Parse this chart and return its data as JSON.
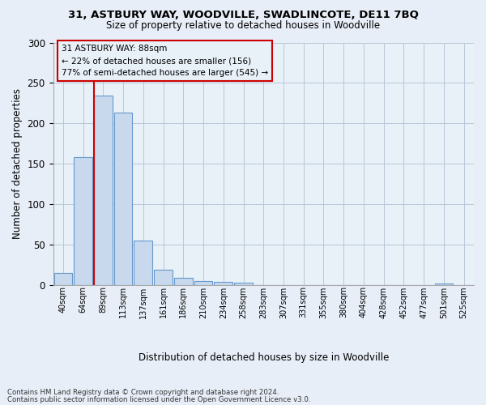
{
  "title1": "31, ASTBURY WAY, WOODVILLE, SWADLINCOTE, DE11 7BQ",
  "title2": "Size of property relative to detached houses in Woodville",
  "xlabel": "Distribution of detached houses by size in Woodville",
  "ylabel": "Number of detached properties",
  "footer1": "Contains HM Land Registry data © Crown copyright and database right 2024.",
  "footer2": "Contains public sector information licensed under the Open Government Licence v3.0.",
  "annotation_line1": "31 ASTBURY WAY: 88sqm",
  "annotation_line2": "← 22% of detached houses are smaller (156)",
  "annotation_line3": "77% of semi-detached houses are larger (545) →",
  "bar_labels": [
    "40sqm",
    "64sqm",
    "89sqm",
    "113sqm",
    "137sqm",
    "161sqm",
    "186sqm",
    "210sqm",
    "234sqm",
    "258sqm",
    "283sqm",
    "307sqm",
    "331sqm",
    "355sqm",
    "380sqm",
    "404sqm",
    "428sqm",
    "452sqm",
    "477sqm",
    "501sqm",
    "525sqm"
  ],
  "bar_values": [
    15,
    158,
    234,
    213,
    55,
    19,
    9,
    5,
    4,
    3,
    0,
    0,
    0,
    0,
    0,
    0,
    0,
    0,
    0,
    2,
    0
  ],
  "bar_color": "#c8d9ee",
  "bar_edge_color": "#6699cc",
  "grid_color": "#b8c8d8",
  "vline_color": "#cc0000",
  "vline_x_index": 2,
  "annotation_box_edge_color": "#cc0000",
  "background_color": "#e8eef8",
  "plot_bg_color": "#e8f0f8",
  "ylim": [
    0,
    300
  ],
  "yticks": [
    0,
    50,
    100,
    150,
    200,
    250,
    300
  ],
  "title1_fontsize": 9.5,
  "title2_fontsize": 8.5
}
